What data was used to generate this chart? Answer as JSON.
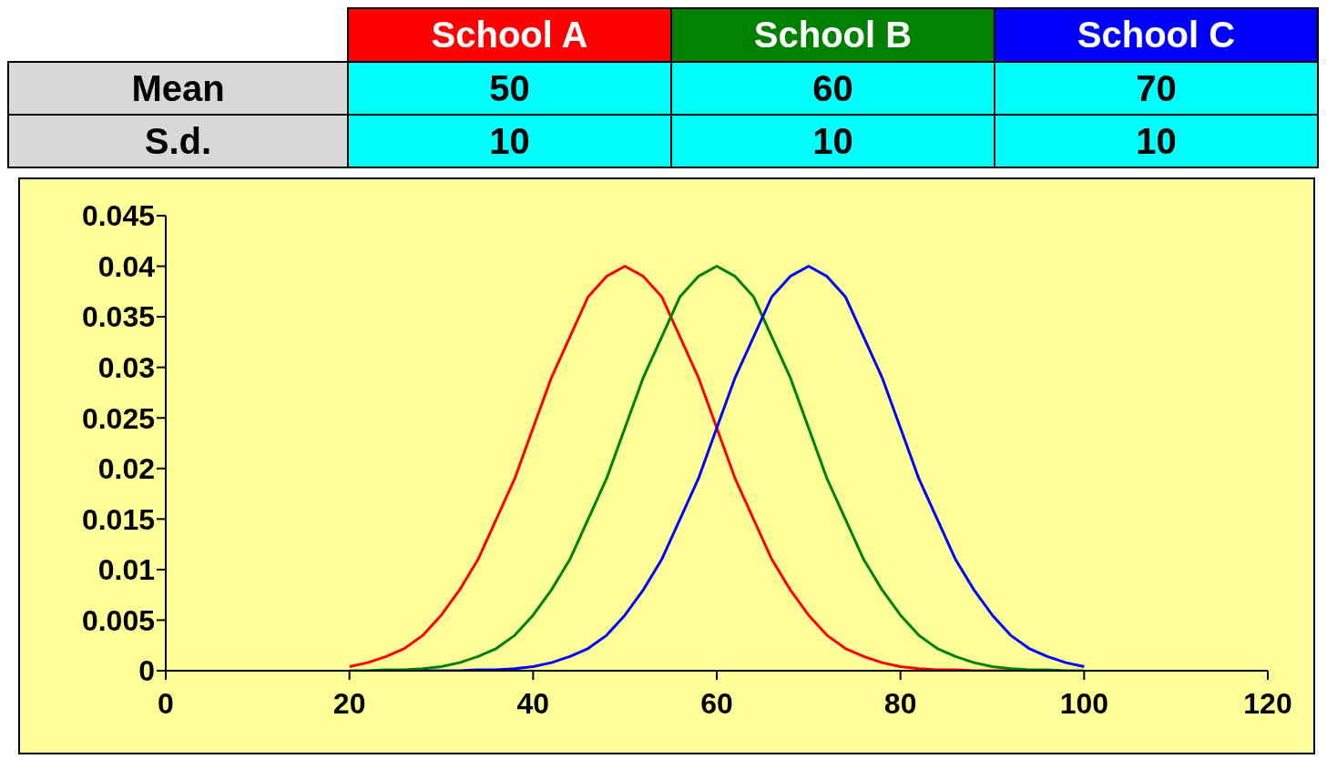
{
  "chart_data": {
    "type": "line",
    "legend": "top",
    "marker": "none",
    "line_style": "solid",
    "annotations": [
      "Mean",
      "50",
      "60",
      "70",
      "S.d.",
      "10",
      "10",
      "10"
    ],
    "x": [
      20,
      22,
      24,
      26,
      28,
      30,
      32,
      34,
      36,
      38,
      40,
      42,
      44,
      46,
      48,
      50,
      52,
      54,
      56,
      58,
      60,
      62,
      64,
      66,
      68,
      70,
      72,
      74,
      76,
      78,
      80,
      82,
      84,
      86,
      88,
      90,
      92,
      94,
      96,
      98,
      100
    ],
    "xlim": [
      0,
      120
    ],
    "xticks": [
      0,
      20,
      40,
      60,
      80,
      100,
      120
    ],
    "ylim": [
      0,
      0.045
    ],
    "yticks": [
      0,
      0.005,
      0.01,
      0.015,
      0.02,
      0.025,
      0.03,
      0.035,
      0.04,
      0.045
    ],
    "series": [
      {
        "name": "School A",
        "color": "#ff0000",
        "values": [
          0.0004,
          0.0008,
          0.0014,
          0.0022,
          0.0035,
          0.0055,
          0.008,
          0.011,
          0.015,
          0.019,
          0.024,
          0.029,
          0.033,
          0.037,
          0.039,
          0.04,
          0.039,
          0.037,
          0.033,
          0.029,
          0.024,
          0.019,
          0.015,
          0.011,
          0.008,
          0.0055,
          0.0035,
          0.0022,
          0.0014,
          0.0008,
          0.0004,
          0.0002,
          0.0001,
          0.0001,
          0,
          0,
          0,
          0,
          null,
          null,
          null
        ]
      },
      {
        "name": "School B",
        "color": "#008000",
        "values": [
          0,
          0,
          0.0001,
          0.0001,
          0.0002,
          0.0004,
          0.0008,
          0.0014,
          0.0022,
          0.0035,
          0.0055,
          0.008,
          0.011,
          0.015,
          0.019,
          0.024,
          0.029,
          0.033,
          0.037,
          0.039,
          0.04,
          0.039,
          0.037,
          0.033,
          0.029,
          0.024,
          0.019,
          0.015,
          0.011,
          0.008,
          0.0055,
          0.0035,
          0.0022,
          0.0014,
          0.0008,
          0.0004,
          0.0002,
          0.0001,
          0.0001,
          0,
          0
        ]
      },
      {
        "name": "School C",
        "color": "#0000ff",
        "values": [
          null,
          null,
          null,
          null,
          0,
          0,
          0,
          0.0001,
          0.0001,
          0.0002,
          0.0004,
          0.0008,
          0.0014,
          0.0022,
          0.0035,
          0.0055,
          0.008,
          0.011,
          0.015,
          0.019,
          0.024,
          0.029,
          0.033,
          0.037,
          0.039,
          0.04,
          0.039,
          0.037,
          0.033,
          0.029,
          0.024,
          0.019,
          0.015,
          0.011,
          0.008,
          0.0055,
          0.0035,
          0.0022,
          0.0014,
          0.0008,
          0.0004
        ]
      }
    ]
  }
}
